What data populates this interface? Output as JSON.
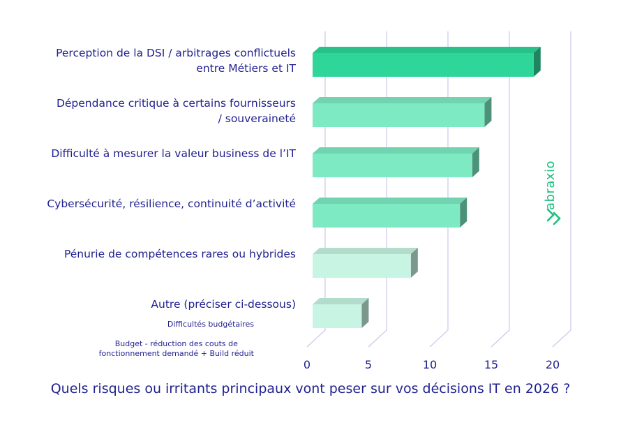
{
  "chart_data": {
    "type": "bar",
    "orientation": "horizontal",
    "title": "Quels risques ou irritants principaux vont peser sur vos décisions IT en 2026 ?",
    "categories": [
      "Perception de la DSI / arbitrages conflictuels entre Métiers et IT",
      "Dépendance critique à certains fournisseurs / souveraineté",
      "Difficulté à mesurer la valeur business de l’IT",
      "Cybersécurité, résilience, continuité d’activité",
      "Pénurie de compétences rares ou hybrides",
      "Autre (préciser ci-dessous)"
    ],
    "category_lines": [
      [
        "Perception de la DSI / arbitrages conflictuels",
        "entre Métiers et IT"
      ],
      [
        "Dépendance critique à certains fournisseurs",
        "/ souveraineté"
      ],
      [
        "Difficulté à mesurer la valeur business de l’IT"
      ],
      [
        "Cybersécurité, résilience, continuité d’activité"
      ],
      [
        "Pénurie de compétences rares ou hybrides"
      ],
      [
        "Autre (préciser ci-dessous)"
      ]
    ],
    "values": [
      18,
      14,
      13,
      12,
      8,
      4
    ],
    "bar_colors": [
      "#2ed699",
      "#7deac4",
      "#7deac4",
      "#7deac4",
      "#c8f4e4",
      "#c8f4e4"
    ],
    "xlim": [
      0,
      20
    ],
    "xticks": [
      "0",
      "5",
      "10",
      "15",
      "20"
    ],
    "grid": true,
    "annotations": [
      "Difficultés budgétaires",
      "Budget - réduction des couts de fonctionnement demandé + Build réduit"
    ],
    "annotation_lines": [
      [
        "Difficultés budgétaires"
      ],
      [
        "Budget - réduction des couts de",
        "fonctionnement demandé + Build réduit"
      ]
    ]
  },
  "brand": {
    "logo_text": "abraxio",
    "color": "#1fbf80"
  },
  "colors": {
    "text": "#1f1f8f",
    "grid": "#c9c9ec"
  }
}
